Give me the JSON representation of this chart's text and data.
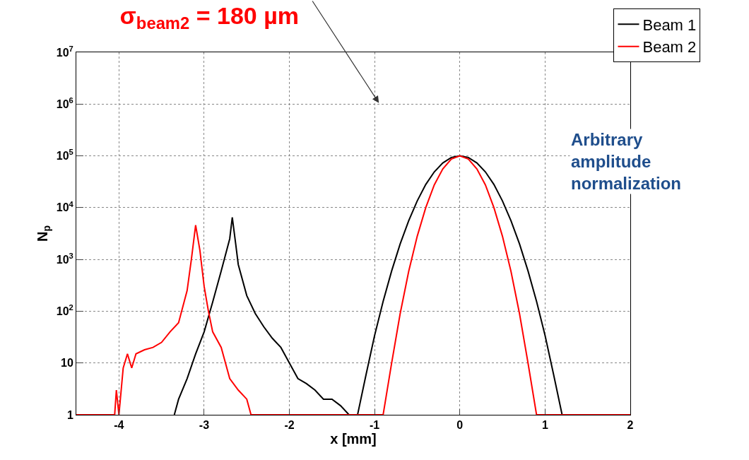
{
  "chart_data": {
    "type": "line",
    "title": "σ$_{beam2}$ = 180 µm",
    "xlabel": "x [mm]",
    "ylabel": "N$_{p}$",
    "annotations": [
      "Arbitrary amplitude normalization"
    ],
    "log": "y",
    "grid": true,
    "legend": "top right",
    "marker": "none",
    "line_style": "solid",
    "xlim": [
      -4.5,
      2
    ],
    "xticks": [
      -4,
      -3,
      -2,
      -1,
      0,
      1,
      2
    ],
    "ylim": [
      1,
      10000000
    ],
    "yticks": [
      {
        "value": 1,
        "label": "1"
      },
      {
        "value": 10,
        "label": "10"
      },
      {
        "value": 100,
        "label": "10$^{2}$"
      },
      {
        "value": 1000,
        "label": "10$^{3}$"
      },
      {
        "value": 10000,
        "label": "10$^{4}$"
      },
      {
        "value": 100000,
        "label": "10$^{5}$"
      },
      {
        "value": 1000000,
        "label": "10$^{6}$"
      },
      {
        "value": 10000000,
        "label": "10$^{7}$"
      }
    ],
    "series": [
      {
        "name": "Beam 1",
        "color": "#000000",
        "x": [
          -3.35,
          -3.3,
          -3.2,
          -3.1,
          -3.0,
          -2.9,
          -2.8,
          -2.7,
          -2.67,
          -2.63,
          -2.6,
          -2.5,
          -2.4,
          -2.3,
          -2.2,
          -2.1,
          -2.0,
          -1.9,
          -1.8,
          -1.7,
          -1.6,
          -1.5,
          -1.4,
          -1.3,
          -1.2,
          -1.1,
          -1.0,
          -0.9,
          -0.8,
          -0.7,
          -0.6,
          -0.5,
          -0.4,
          -0.3,
          -0.2,
          -0.1,
          0,
          0.1,
          0.2,
          0.3,
          0.4,
          0.5,
          0.6,
          0.7,
          0.8,
          0.9,
          1.0,
          1.1,
          1.2,
          1.25
        ],
        "values": [
          1,
          2,
          5,
          15,
          40,
          150,
          600,
          2500,
          6500,
          2000,
          800,
          200,
          90,
          50,
          30,
          20,
          10,
          5,
          4,
          3,
          2,
          2,
          1.5,
          1,
          1,
          6,
          34,
          155,
          600,
          2000,
          5600,
          13500,
          28000,
          49000,
          73000,
          93000,
          100000,
          93000,
          73000,
          49000,
          28000,
          13500,
          5600,
          2000,
          600,
          155,
          34,
          6,
          1,
          1
        ]
      },
      {
        "name": "Beam 2",
        "color": "#ff0000",
        "x": [
          -4.5,
          -4.05,
          -4.03,
          -4.0,
          -3.95,
          -3.9,
          -3.85,
          -3.8,
          -3.7,
          -3.6,
          -3.5,
          -3.4,
          -3.3,
          -3.2,
          -3.15,
          -3.1,
          -3.05,
          -3.0,
          -2.95,
          -2.9,
          -2.8,
          -2.75,
          -2.7,
          -2.6,
          -2.5,
          -2.45,
          -2.0,
          -0.9,
          -0.8,
          -0.7,
          -0.6,
          -0.5,
          -0.4,
          -0.3,
          -0.2,
          -0.1,
          0,
          0.1,
          0.2,
          0.3,
          0.4,
          0.5,
          0.6,
          0.7,
          0.8,
          0.9,
          2.0
        ],
        "values": [
          1,
          1,
          3,
          1,
          8,
          15,
          8,
          15,
          18,
          20,
          25,
          40,
          60,
          250,
          1000,
          4600,
          1500,
          300,
          100,
          40,
          20,
          10,
          5,
          3,
          2,
          1,
          1,
          1,
          10,
          90,
          590,
          2800,
          10000,
          27500,
          56000,
          87000,
          100000,
          87000,
          56000,
          27500,
          10000,
          2800,
          590,
          90,
          10,
          1,
          1
        ]
      }
    ]
  }
}
